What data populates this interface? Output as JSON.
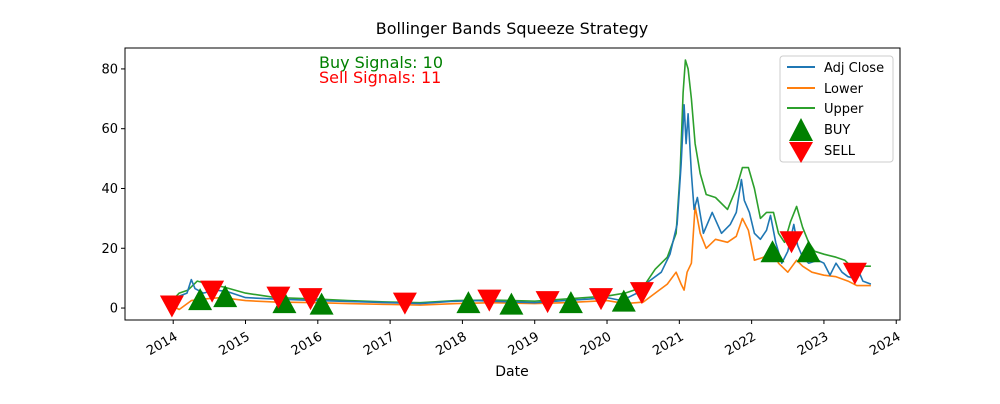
{
  "chart_data": {
    "type": "line",
    "title": "Bollinger Bands Squeeze Strategy",
    "xlabel": "Date",
    "ylabel": "",
    "xlim": [
      "2013-05-01",
      "2024-01-20"
    ],
    "ylim": [
      -4,
      87
    ],
    "x_ticks": [
      "2014",
      "2015",
      "2016",
      "2017",
      "2018",
      "2019",
      "2020",
      "2021",
      "2022",
      "2023",
      "2024"
    ],
    "y_ticks": [
      0,
      20,
      40,
      60,
      80
    ],
    "grid": false,
    "legend_position": "top-right",
    "annotations": [
      {
        "text": "Buy Signals: 10",
        "color": "#008000"
      },
      {
        "text": "Sell Signals: 11",
        "color": "#ff0000"
      }
    ],
    "series": [
      {
        "name": "Adj Close",
        "color": "#1f77b4",
        "points": [
          [
            "2013-12-20",
            2.5
          ],
          [
            "2014-02-01",
            4.0
          ],
          [
            "2014-03-10",
            5.0
          ],
          [
            "2014-04-01",
            9.5
          ],
          [
            "2014-04-20",
            6.5
          ],
          [
            "2014-06-01",
            5.0
          ],
          [
            "2014-08-01",
            6.0
          ],
          [
            "2014-10-01",
            5.5
          ],
          [
            "2015-01-01",
            3.5
          ],
          [
            "2015-06-01",
            3.0
          ],
          [
            "2016-01-01",
            2.5
          ],
          [
            "2016-06-01",
            2.2
          ],
          [
            "2017-01-01",
            1.8
          ],
          [
            "2017-06-01",
            1.5
          ],
          [
            "2017-11-01",
            2.2
          ],
          [
            "2018-03-01",
            2.5
          ],
          [
            "2018-06-01",
            2.3
          ],
          [
            "2018-10-01",
            2.0
          ],
          [
            "2019-01-01",
            1.8
          ],
          [
            "2019-06-01",
            2.5
          ],
          [
            "2019-10-01",
            3.0
          ],
          [
            "2020-01-01",
            3.5
          ],
          [
            "2020-03-15",
            2.5
          ],
          [
            "2020-06-01",
            5.0
          ],
          [
            "2020-08-01",
            9.0
          ],
          [
            "2020-10-01",
            12.0
          ],
          [
            "2020-11-15",
            18.0
          ],
          [
            "2020-12-20",
            28.0
          ],
          [
            "2021-01-10",
            48.0
          ],
          [
            "2021-01-25",
            68.0
          ],
          [
            "2021-02-05",
            55.0
          ],
          [
            "2021-02-15",
            65.0
          ],
          [
            "2021-03-01",
            45.0
          ],
          [
            "2021-03-15",
            33.0
          ],
          [
            "2021-04-01",
            37.0
          ],
          [
            "2021-05-01",
            25.0
          ],
          [
            "2021-06-15",
            32.0
          ],
          [
            "2021-08-01",
            25.0
          ],
          [
            "2021-09-15",
            28.0
          ],
          [
            "2021-10-15",
            32.0
          ],
          [
            "2021-11-10",
            43.0
          ],
          [
            "2021-11-25",
            36.0
          ],
          [
            "2021-12-20",
            32.0
          ],
          [
            "2022-01-15",
            25.0
          ],
          [
            "2022-02-15",
            23.0
          ],
          [
            "2022-03-15",
            26.0
          ],
          [
            "2022-04-05",
            31.0
          ],
          [
            "2022-05-01",
            22.0
          ],
          [
            "2022-06-01",
            15.0
          ],
          [
            "2022-07-01",
            19.0
          ],
          [
            "2022-08-01",
            28.0
          ],
          [
            "2022-08-20",
            21.0
          ],
          [
            "2022-09-15",
            17.0
          ],
          [
            "2022-10-15",
            15.0
          ],
          [
            "2022-12-01",
            16.0
          ],
          [
            "2023-01-01",
            15.0
          ],
          [
            "2023-02-01",
            11.0
          ],
          [
            "2023-03-01",
            15.0
          ],
          [
            "2023-04-01",
            12.0
          ],
          [
            "2023-05-01",
            10.5
          ],
          [
            "2023-06-01",
            10.0
          ],
          [
            "2023-06-20",
            13.0
          ],
          [
            "2023-07-15",
            9.0
          ],
          [
            "2023-08-25",
            8.0
          ]
        ]
      },
      {
        "name": "Lower",
        "color": "#ff7f0e",
        "points": [
          [
            "2013-12-20",
            1.0
          ],
          [
            "2014-02-01",
            -0.5
          ],
          [
            "2014-04-01",
            2.5
          ],
          [
            "2014-06-01",
            3.0
          ],
          [
            "2014-09-01",
            3.5
          ],
          [
            "2015-01-01",
            2.5
          ],
          [
            "2015-06-01",
            2.0
          ],
          [
            "2016-01-01",
            1.8
          ],
          [
            "2016-06-01",
            1.5
          ],
          [
            "2017-01-01",
            1.2
          ],
          [
            "2017-06-01",
            1.0
          ],
          [
            "2017-12-01",
            1.5
          ],
          [
            "2018-06-01",
            1.8
          ],
          [
            "2019-01-01",
            1.5
          ],
          [
            "2019-06-01",
            1.8
          ],
          [
            "2020-01-01",
            2.5
          ],
          [
            "2020-04-01",
            1.5
          ],
          [
            "2020-07-01",
            2.0
          ],
          [
            "2020-09-01",
            5.0
          ],
          [
            "2020-11-01",
            8.0
          ],
          [
            "2020-12-15",
            12.0
          ],
          [
            "2021-01-10",
            8.0
          ],
          [
            "2021-01-25",
            6.0
          ],
          [
            "2021-02-10",
            12.0
          ],
          [
            "2021-03-01",
            15.0
          ],
          [
            "2021-03-20",
            34.0
          ],
          [
            "2021-04-15",
            25.0
          ],
          [
            "2021-05-15",
            20.0
          ],
          [
            "2021-07-01",
            23.0
          ],
          [
            "2021-09-01",
            22.0
          ],
          [
            "2021-10-15",
            24.0
          ],
          [
            "2021-11-15",
            30.0
          ],
          [
            "2021-12-15",
            26.0
          ],
          [
            "2022-01-15",
            16.0
          ],
          [
            "2022-03-01",
            17.0
          ],
          [
            "2022-04-15",
            20.0
          ],
          [
            "2022-05-15",
            15.0
          ],
          [
            "2022-07-01",
            12.0
          ],
          [
            "2022-08-15",
            16.0
          ],
          [
            "2022-09-15",
            14.0
          ],
          [
            "2022-11-01",
            12.0
          ],
          [
            "2023-01-01",
            11.0
          ],
          [
            "2023-03-01",
            10.5
          ],
          [
            "2023-05-01",
            9.0
          ],
          [
            "2023-06-15",
            7.5
          ],
          [
            "2023-08-25",
            7.5
          ]
        ]
      },
      {
        "name": "Upper",
        "color": "#2ca02c",
        "points": [
          [
            "2013-12-20",
            2.0
          ],
          [
            "2014-02-01",
            5.0
          ],
          [
            "2014-03-15",
            6.0
          ],
          [
            "2014-05-01",
            9.0
          ],
          [
            "2014-07-01",
            8.0
          ],
          [
            "2014-09-15",
            7.0
          ],
          [
            "2015-01-01",
            5.0
          ],
          [
            "2015-06-01",
            3.5
          ],
          [
            "2016-01-01",
            3.0
          ],
          [
            "2016-06-01",
            2.5
          ],
          [
            "2017-01-01",
            2.0
          ],
          [
            "2017-06-01",
            1.8
          ],
          [
            "2017-12-01",
            2.5
          ],
          [
            "2018-06-01",
            2.7
          ],
          [
            "2019-01-01",
            2.3
          ],
          [
            "2019-06-01",
            3.0
          ],
          [
            "2020-01-01",
            4.0
          ],
          [
            "2020-04-01",
            5.0
          ],
          [
            "2020-07-01",
            7.0
          ],
          [
            "2020-09-01",
            13.0
          ],
          [
            "2020-11-01",
            17.0
          ],
          [
            "2020-12-15",
            25.0
          ],
          [
            "2021-01-05",
            45.0
          ],
          [
            "2021-01-20",
            72.0
          ],
          [
            "2021-02-01",
            83.0
          ],
          [
            "2021-02-15",
            80.0
          ],
          [
            "2021-03-01",
            70.0
          ],
          [
            "2021-03-20",
            55.0
          ],
          [
            "2021-04-15",
            45.0
          ],
          [
            "2021-05-15",
            38.0
          ],
          [
            "2021-07-01",
            37.0
          ],
          [
            "2021-09-01",
            33.0
          ],
          [
            "2021-10-15",
            40.0
          ],
          [
            "2021-11-15",
            47.0
          ],
          [
            "2021-12-15",
            47.0
          ],
          [
            "2022-01-15",
            40.0
          ],
          [
            "2022-02-15",
            30.0
          ],
          [
            "2022-03-15",
            32.0
          ],
          [
            "2022-04-20",
            32.0
          ],
          [
            "2022-05-15",
            25.0
          ],
          [
            "2022-06-15",
            22.0
          ],
          [
            "2022-07-15",
            29.0
          ],
          [
            "2022-08-15",
            34.0
          ],
          [
            "2022-09-15",
            27.0
          ],
          [
            "2022-10-15",
            22.0
          ],
          [
            "2022-11-15",
            19.0
          ],
          [
            "2023-01-01",
            18.0
          ],
          [
            "2023-03-01",
            17.0
          ],
          [
            "2023-04-15",
            16.0
          ],
          [
            "2023-05-15",
            14.0
          ],
          [
            "2023-07-15",
            14.0
          ],
          [
            "2023-08-25",
            14.0
          ]
        ]
      }
    ],
    "markers": [
      {
        "name": "BUY",
        "shape": "triangle-up",
        "color": "#008000",
        "points": [
          [
            "2014-05-15",
            3.0
          ],
          [
            "2014-09-20",
            4.0
          ],
          [
            "2015-07-15",
            2.0
          ],
          [
            "2016-01-20",
            1.5
          ],
          [
            "2018-02-01",
            2.0
          ],
          [
            "2018-09-05",
            1.5
          ],
          [
            "2019-07-01",
            2.0
          ],
          [
            "2020-03-25",
            2.5
          ],
          [
            "2022-04-15",
            19.0
          ],
          [
            "2022-10-15",
            19.0
          ]
        ]
      },
      {
        "name": "SELL",
        "shape": "triangle-down",
        "color": "#ff0000",
        "points": [
          [
            "2013-12-25",
            0.5
          ],
          [
            "2014-07-15",
            5.5
          ],
          [
            "2015-06-15",
            3.5
          ],
          [
            "2015-11-25",
            3.0
          ],
          [
            "2017-03-15",
            1.5
          ],
          [
            "2018-05-15",
            2.5
          ],
          [
            "2019-03-05",
            2.0
          ],
          [
            "2019-12-01",
            3.0
          ],
          [
            "2020-06-25",
            5.0
          ],
          [
            "2022-07-20",
            22.0
          ],
          [
            "2023-06-05",
            11.5
          ]
        ]
      }
    ]
  }
}
